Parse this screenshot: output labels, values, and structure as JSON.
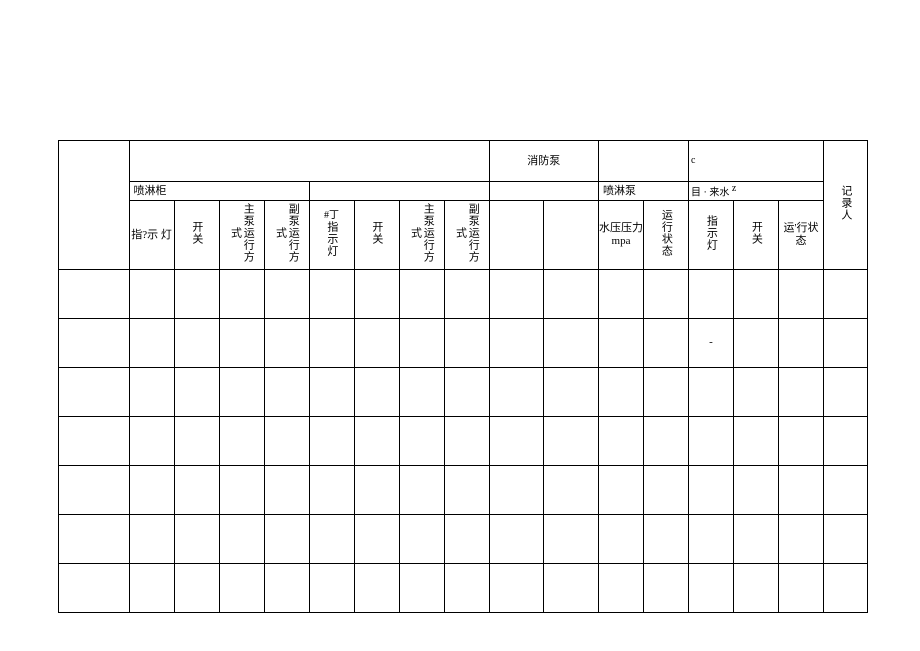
{
  "table": {
    "header_row1": {
      "left_blank": "",
      "xiaofang_pump": "消防泵",
      "corner_mark": "c",
      "right_blank": "",
      "recorder": "记录人"
    },
    "header_row2": {
      "penlin_gui": "喷淋柜",
      "penlin_pump": "喷淋泵",
      "zilai_water": "目 · 来水",
      "mark2": "z"
    },
    "header_row3": {
      "c1": "指?示 灯",
      "c2": "开关",
      "c3": "主泵运行方式",
      "c4": "副泵运行方式",
      "c5": "指示灯",
      "c5_mark": "#丁",
      "c6": "开关",
      "c7": "主泵运行方式",
      "c8": "副泵运行方式",
      "c9": "",
      "c10": "",
      "c11": "水压压力mpa",
      "c12": "运行状态",
      "c13": "指示灯",
      "c13_mark": "-",
      "c14": "开关",
      "c15": "运'行状态"
    },
    "body_rows": 7,
    "cols_body": 17,
    "colors": {
      "border": "#000000",
      "text": "#000000",
      "background": "#ffffff"
    },
    "fontsize_header": 11,
    "fontsize_body": 11
  }
}
